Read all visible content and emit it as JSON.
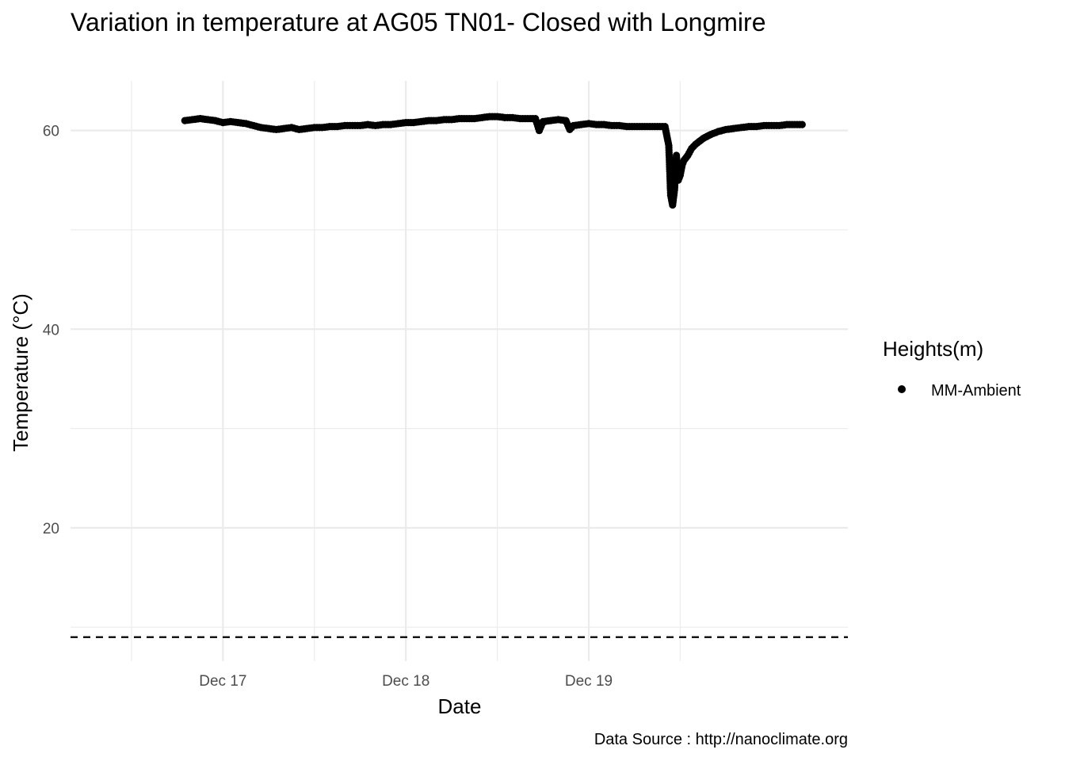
{
  "chart_data": {
    "type": "line",
    "title": "Variation in temperature at AG05 TN01- Closed with Longmire",
    "xlabel": "Date",
    "ylabel": "Temperature (°C)",
    "caption": "Data Source : http://nanoclimate.org",
    "legend": {
      "title": "Heights(m)",
      "position": "right",
      "entries": [
        "MM-Ambient"
      ]
    },
    "x_ticks": [
      {
        "value": "2016-12-17T00:00",
        "label": "Dec 17"
      },
      {
        "value": "2016-12-18T00:00",
        "label": "Dec 18"
      },
      {
        "value": "2016-12-19T00:00",
        "label": "Dec 19"
      }
    ],
    "y_ticks": [
      20,
      40,
      60
    ],
    "xlim": [
      "2016-12-16T04:00",
      "2016-12-20T10:00"
    ],
    "ylim": [
      8.5,
      65
    ],
    "grid": true,
    "reference_line": {
      "y": 9,
      "style": "dashed"
    },
    "series": [
      {
        "name": "MM-Ambient",
        "color": "#000000",
        "marker": "circle",
        "x": [
          "2016-12-16T19:00",
          "2016-12-16T20:00",
          "2016-12-16T21:00",
          "2016-12-16T22:00",
          "2016-12-16T23:00",
          "2016-12-17T00:00",
          "2016-12-17T01:00",
          "2016-12-17T02:00",
          "2016-12-17T03:00",
          "2016-12-17T04:00",
          "2016-12-17T05:00",
          "2016-12-17T06:00",
          "2016-12-17T07:00",
          "2016-12-17T08:00",
          "2016-12-17T09:00",
          "2016-12-17T10:00",
          "2016-12-17T11:00",
          "2016-12-17T12:00",
          "2016-12-17T13:00",
          "2016-12-17T14:00",
          "2016-12-17T15:00",
          "2016-12-17T16:00",
          "2016-12-17T17:00",
          "2016-12-17T18:00",
          "2016-12-17T19:00",
          "2016-12-17T20:00",
          "2016-12-17T21:00",
          "2016-12-17T22:00",
          "2016-12-17T23:00",
          "2016-12-18T00:00",
          "2016-12-18T01:00",
          "2016-12-18T02:00",
          "2016-12-18T03:00",
          "2016-12-18T04:00",
          "2016-12-18T05:00",
          "2016-12-18T06:00",
          "2016-12-18T07:00",
          "2016-12-18T08:00",
          "2016-12-18T09:00",
          "2016-12-18T10:00",
          "2016-12-18T11:00",
          "2016-12-18T12:00",
          "2016-12-18T13:00",
          "2016-12-18T14:00",
          "2016-12-18T15:00",
          "2016-12-18T16:00",
          "2016-12-18T17:00",
          "2016-12-18T17:30",
          "2016-12-18T18:00",
          "2016-12-18T19:00",
          "2016-12-18T20:00",
          "2016-12-18T21:00",
          "2016-12-18T21:30",
          "2016-12-18T22:00",
          "2016-12-18T23:00",
          "2016-12-19T00:00",
          "2016-12-19T01:00",
          "2016-12-19T02:00",
          "2016-12-19T03:00",
          "2016-12-19T04:00",
          "2016-12-19T05:00",
          "2016-12-19T06:00",
          "2016-12-19T07:00",
          "2016-12-19T08:00",
          "2016-12-19T09:00",
          "2016-12-19T10:00",
          "2016-12-19T10:30",
          "2016-12-19T10:45",
          "2016-12-19T11:00",
          "2016-12-19T11:15",
          "2016-12-19T11:30",
          "2016-12-19T11:45",
          "2016-12-19T12:00",
          "2016-12-19T12:15",
          "2016-12-19T12:30",
          "2016-12-19T13:00",
          "2016-12-19T13:30",
          "2016-12-19T14:00",
          "2016-12-19T15:00",
          "2016-12-19T16:00",
          "2016-12-19T17:00",
          "2016-12-19T18:00",
          "2016-12-19T19:00",
          "2016-12-19T20:00",
          "2016-12-19T21:00",
          "2016-12-19T22:00",
          "2016-12-19T23:00",
          "2016-12-20T00:00",
          "2016-12-20T01:00",
          "2016-12-20T02:00",
          "2016-12-20T03:00",
          "2016-12-20T04:00"
        ],
        "y": [
          61.0,
          61.1,
          61.2,
          61.1,
          61.0,
          60.8,
          60.9,
          60.8,
          60.7,
          60.5,
          60.3,
          60.2,
          60.1,
          60.2,
          60.3,
          60.1,
          60.2,
          60.3,
          60.3,
          60.4,
          60.4,
          60.5,
          60.5,
          60.5,
          60.6,
          60.5,
          60.6,
          60.6,
          60.7,
          60.8,
          60.8,
          60.9,
          61.0,
          61.0,
          61.1,
          61.1,
          61.2,
          61.2,
          61.2,
          61.3,
          61.4,
          61.4,
          61.3,
          61.3,
          61.2,
          61.2,
          61.2,
          60.0,
          60.9,
          61.0,
          61.1,
          61.0,
          60.1,
          60.5,
          60.6,
          60.7,
          60.6,
          60.6,
          60.5,
          60.5,
          60.4,
          60.4,
          60.4,
          60.4,
          60.4,
          60.4,
          58.5,
          53.5,
          52.5,
          54.0,
          57.5,
          55.0,
          55.5,
          56.5,
          57.0,
          57.5,
          58.2,
          58.6,
          59.2,
          59.6,
          59.9,
          60.1,
          60.2,
          60.3,
          60.4,
          60.4,
          60.5,
          60.5,
          60.5,
          60.6,
          60.6,
          60.6
        ]
      }
    ]
  }
}
